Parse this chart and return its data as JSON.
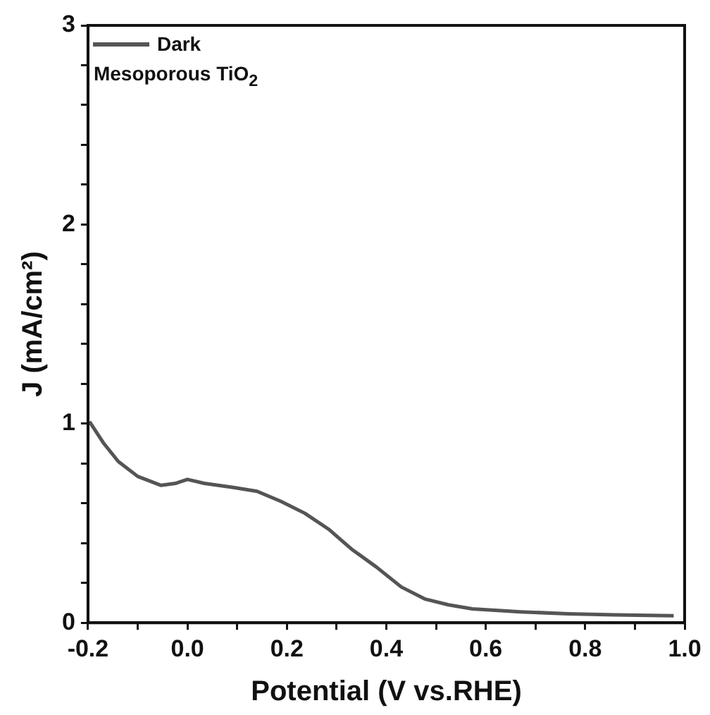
{
  "chart_data": {
    "type": "line",
    "xlabel": "Potential (V vs.RHE)",
    "ylabel": "J (mA/cm²)",
    "x": [
      -0.197,
      -0.168,
      -0.139,
      -0.1,
      -0.053,
      -0.024,
      0.0,
      0.034,
      0.092,
      0.14,
      0.188,
      0.236,
      0.284,
      0.33,
      0.38,
      0.43,
      0.477,
      0.525,
      0.573,
      0.67,
      0.766,
      0.86,
      0.978
    ],
    "series": [
      {
        "name": "Dark",
        "color": "#555555",
        "values": [
          1.01,
          0.9,
          0.81,
          0.735,
          0.69,
          0.7,
          0.72,
          0.7,
          0.68,
          0.66,
          0.61,
          0.55,
          0.47,
          0.37,
          0.28,
          0.18,
          0.12,
          0.09,
          0.07,
          0.055,
          0.045,
          0.04,
          0.035
        ]
      }
    ],
    "xlim": [
      -0.2,
      1.0
    ],
    "ylim": [
      0,
      3
    ],
    "xticks": [
      {
        "value": -0.2,
        "label": "-0.2"
      },
      {
        "value": -0.1,
        "label": null
      },
      {
        "value": 0,
        "label": "0.0"
      },
      {
        "value": 0.1,
        "label": null
      },
      {
        "value": 0.2,
        "label": "0.2"
      },
      {
        "value": 0.3,
        "label": null
      },
      {
        "value": 0.4,
        "label": "0.4"
      },
      {
        "value": 0.5,
        "label": null
      },
      {
        "value": 0.6,
        "label": "0.6"
      },
      {
        "value": 0.7,
        "label": null
      },
      {
        "value": 0.8,
        "label": "0.8"
      },
      {
        "value": 0.9,
        "label": null
      },
      {
        "value": 1,
        "label": "1.0"
      }
    ],
    "yticks": [
      0,
      {
        "value": 0.2,
        "label": null
      },
      {
        "value": 0.4,
        "label": null
      },
      {
        "value": 0.6,
        "label": null
      },
      {
        "value": 0.8,
        "label": null
      },
      1,
      {
        "value": 1.2,
        "label": null
      },
      {
        "value": 1.4,
        "label": null
      },
      {
        "value": 1.6,
        "label": null
      },
      {
        "value": 1.8,
        "label": null
      },
      2,
      {
        "value": 2.2,
        "label": null
      },
      {
        "value": 2.4,
        "label": null
      },
      {
        "value": 2.6,
        "label": null
      },
      {
        "value": 2.8,
        "label": null
      },
      3
    ],
    "grid": false,
    "legend": "top left",
    "marker": "none",
    "line_style": "solid",
    "annotations": [
      "Mesoporous TiO$_{2}$"
    ]
  }
}
